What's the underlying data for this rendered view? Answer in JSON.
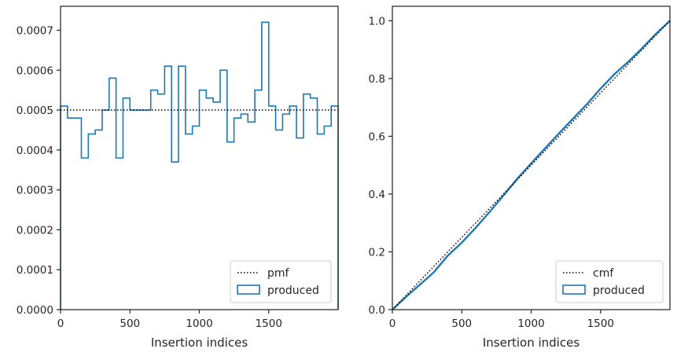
{
  "colors": {
    "produced": "#1f77b4",
    "reference": "#000000",
    "axes": "#262626"
  },
  "chart_data": [
    {
      "type": "histogram-step",
      "title": "",
      "xlabel": "Insertion indices",
      "ylabel": "",
      "xlim": [
        0,
        2000
      ],
      "ylim": [
        0,
        0.00076
      ],
      "xticks": [
        0,
        500,
        1000,
        1500
      ],
      "xtick_labels": [
        "0",
        "500",
        "1000",
        "1500"
      ],
      "yticks": [
        0,
        0.0001,
        0.0002,
        0.0003,
        0.0004,
        0.0005,
        0.0006,
        0.0007
      ],
      "ytick_labels": [
        "0.0000",
        "0.0001",
        "0.0002",
        "0.0003",
        "0.0004",
        "0.0005",
        "0.0006",
        "0.0007"
      ],
      "grid": false,
      "legend_position": "lower-right",
      "bin_edges": [
        0,
        50,
        150,
        200,
        250,
        300,
        350,
        400,
        450,
        500,
        550,
        650,
        700,
        750,
        800,
        850,
        900,
        950,
        1000,
        1050,
        1100,
        1150,
        1200,
        1250,
        1300,
        1350,
        1400,
        1450,
        1500,
        1550,
        1600,
        1650,
        1700,
        1750,
        1800,
        1850,
        1900,
        1950,
        2000
      ],
      "series": [
        {
          "name": "pmf",
          "style": "dotted",
          "values": [
            0.0005,
            0.0005
          ],
          "x": [
            0,
            2000
          ]
        },
        {
          "name": "produced",
          "style": "step",
          "values": [
            0.00051,
            0.00048,
            0.00038,
            0.00044,
            0.00045,
            0.0005,
            0.00058,
            0.00038,
            0.00053,
            0.0005,
            0.0005,
            0.00055,
            0.00054,
            0.00061,
            0.00037,
            0.00061,
            0.00044,
            0.00046,
            0.00055,
            0.00053,
            0.00052,
            0.0006,
            0.00042,
            0.00048,
            0.00049,
            0.00047,
            0.00055,
            0.00072,
            0.00051,
            0.00045,
            0.00049,
            0.00051,
            0.00043,
            0.00054,
            0.00053,
            0.00044,
            0.00046,
            0.00051
          ]
        }
      ],
      "legend": [
        "pmf",
        "produced"
      ]
    },
    {
      "type": "line",
      "title": "",
      "xlabel": "Insertion indices",
      "ylabel": "",
      "xlim": [
        0,
        2000
      ],
      "ylim": [
        0,
        1.05
      ],
      "xticks": [
        0,
        500,
        1000,
        1500
      ],
      "xtick_labels": [
        "0",
        "500",
        "1000",
        "1500"
      ],
      "yticks": [
        0,
        0.2,
        0.4,
        0.6,
        0.8,
        1.0
      ],
      "ytick_labels": [
        "0.0",
        "0.2",
        "0.4",
        "0.6",
        "0.8",
        "1.0"
      ],
      "grid": false,
      "legend_position": "lower-right",
      "series": [
        {
          "name": "cmf",
          "style": "dotted",
          "x": [
            0,
            2000
          ],
          "values": [
            0,
            1.0
          ]
        },
        {
          "name": "produced",
          "style": "line",
          "x": [
            0,
            100,
            200,
            300,
            400,
            500,
            600,
            700,
            800,
            900,
            1000,
            1100,
            1200,
            1300,
            1400,
            1500,
            1600,
            1700,
            1800,
            1900,
            2000
          ],
          "values": [
            0,
            0.045,
            0.087,
            0.13,
            0.187,
            0.232,
            0.283,
            0.338,
            0.395,
            0.453,
            0.506,
            0.558,
            0.61,
            0.66,
            0.71,
            0.765,
            0.815,
            0.858,
            0.905,
            0.955,
            1.0
          ]
        }
      ],
      "legend": [
        "cmf",
        "produced"
      ]
    }
  ]
}
